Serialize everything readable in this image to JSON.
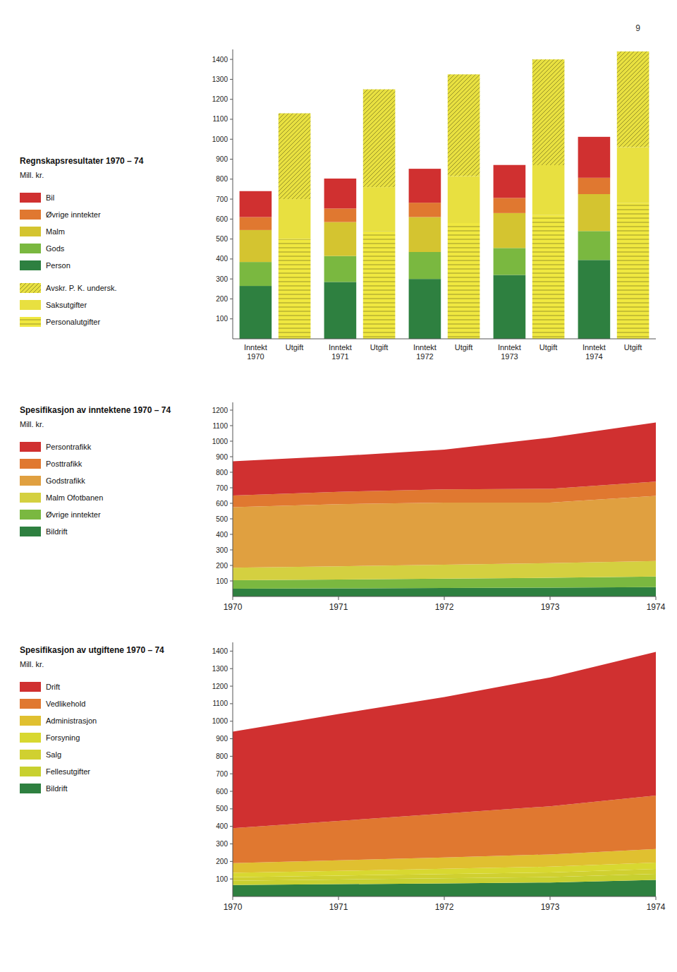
{
  "page_number": "9",
  "chart_data": [
    {
      "type": "bar",
      "stacked": true,
      "legend": "left",
      "grid": false,
      "title": "Regnskapsresultater 1970 – 74",
      "subtitle": "Mill. kr.",
      "categories": [
        "Inntekt\n1970",
        "Utgift",
        "Inntekt\n1971",
        "Utgift",
        "Inntekt\n1972",
        "Utgift",
        "Inntekt\n1973",
        "Utgift",
        "Inntekt\n1974",
        "Utgift"
      ],
      "series": [
        {
          "name": "Person",
          "color": "#2e8040",
          "values": [
            265,
            null,
            285,
            null,
            300,
            null,
            320,
            null,
            395,
            null
          ]
        },
        {
          "name": "Gods",
          "color": "#7ab840",
          "values": [
            120,
            null,
            130,
            null,
            135,
            null,
            135,
            null,
            145,
            null
          ]
        },
        {
          "name": "Malm",
          "color": "#d4c430",
          "values": [
            160,
            null,
            170,
            null,
            175,
            null,
            175,
            null,
            185,
            null
          ]
        },
        {
          "name": "Øvrige inntekter",
          "color": "#e07830",
          "values": [
            65,
            null,
            68,
            null,
            72,
            null,
            76,
            null,
            82,
            null
          ]
        },
        {
          "name": "Bil",
          "color": "#d03030",
          "values": [
            130,
            null,
            150,
            null,
            170,
            null,
            165,
            null,
            205,
            null
          ]
        },
        {
          "name": "Personalutgifter",
          "color": "#f0e840",
          "values": [
            null,
            500,
            null,
            540,
            null,
            580,
            null,
            620,
            null,
            680
          ]
        },
        {
          "name": "Saksutgifter",
          "color": "#e8e040",
          "values": [
            null,
            200,
            null,
            220,
            null,
            235,
            null,
            250,
            null,
            280
          ]
        },
        {
          "name": "Avskr. P. K. undersk.",
          "color": "#e8e040",
          "values": [
            null,
            430,
            null,
            490,
            null,
            510,
            null,
            530,
            null,
            480
          ]
        }
      ],
      "ylim": [
        0,
        1450
      ],
      "yticks": [
        100,
        200,
        300,
        400,
        500,
        600,
        700,
        800,
        900,
        1000,
        1100,
        1200,
        1300,
        1400
      ]
    },
    {
      "type": "area",
      "stacked": true,
      "legend": "left",
      "grid": false,
      "title": "Spesifikasjon av inntektene 1970 – 74",
      "subtitle": "Mill. kr.",
      "x": [
        1970,
        1971,
        1972,
        1973,
        1974
      ],
      "series": [
        {
          "name": "Bildrift",
          "color": "#2e8040",
          "values": [
            50,
            52,
            55,
            57,
            60
          ]
        },
        {
          "name": "Øvrige inntekter",
          "color": "#7ab840",
          "values": [
            55,
            57,
            60,
            63,
            68
          ]
        },
        {
          "name": "Malm Ofotbanen",
          "color": "#d4d040",
          "values": [
            80,
            85,
            90,
            95,
            100
          ]
        },
        {
          "name": "Godstrafikk",
          "color": "#e0a040",
          "values": [
            390,
            400,
            400,
            390,
            420
          ]
        },
        {
          "name": "Posttrafikk",
          "color": "#e07830",
          "values": [
            75,
            80,
            85,
            88,
            92
          ]
        },
        {
          "name": "Persontrafikk",
          "color": "#d03030",
          "values": [
            220,
            230,
            255,
            330,
            380
          ]
        }
      ],
      "xlim": [
        1970,
        1974
      ],
      "xticks": [
        1970,
        1971,
        1972,
        1973,
        1974
      ],
      "ylim": [
        0,
        1250
      ],
      "yticks": [
        100,
        200,
        300,
        400,
        500,
        600,
        700,
        800,
        900,
        1000,
        1100,
        1200
      ]
    },
    {
      "type": "area",
      "stacked": true,
      "legend": "left",
      "grid": false,
      "title": "Spesifikasjon av utgiftene 1970 – 74",
      "subtitle": "Mill. kr.",
      "x": [
        1970,
        1971,
        1972,
        1973,
        1974
      ],
      "series": [
        {
          "name": "Bildrift",
          "color": "#2e8040",
          "values": [
            65,
            70,
            75,
            80,
            95
          ]
        },
        {
          "name": "Fellesutgifter",
          "color": "#c8d030",
          "values": [
            25,
            27,
            29,
            31,
            34
          ]
        },
        {
          "name": "Salg",
          "color": "#d0d030",
          "values": [
            20,
            22,
            24,
            26,
            28
          ]
        },
        {
          "name": "Forsyning",
          "color": "#d8d830",
          "values": [
            25,
            27,
            30,
            33,
            36
          ]
        },
        {
          "name": "Administrasjon",
          "color": "#e0c030",
          "values": [
            55,
            60,
            65,
            70,
            78
          ]
        },
        {
          "name": "Vedlikehold",
          "color": "#e07830",
          "values": [
            200,
            225,
            250,
            275,
            305
          ]
        },
        {
          "name": "Drift",
          "color": "#d03030",
          "values": [
            550,
            610,
            665,
            735,
            820
          ]
        }
      ],
      "xlim": [
        1970,
        1974
      ],
      "xticks": [
        1970,
        1971,
        1972,
        1973,
        1974
      ],
      "ylim": [
        0,
        1450
      ],
      "yticks": [
        100,
        200,
        300,
        400,
        500,
        600,
        700,
        800,
        900,
        1000,
        1100,
        1200,
        1300,
        1400
      ]
    }
  ]
}
